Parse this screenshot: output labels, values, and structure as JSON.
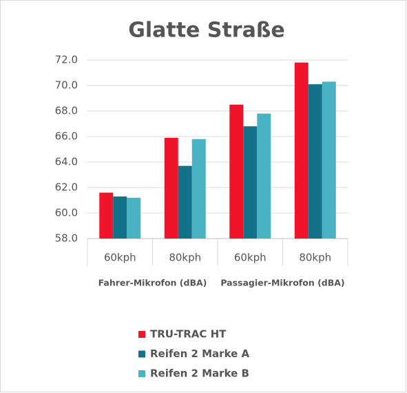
{
  "chart_data": {
    "type": "bar",
    "title": "Glatte Straße",
    "categories": [
      "60kph",
      "80kph",
      "60kph",
      "80kph"
    ],
    "group_labels": [
      "Fahrer-Mikrofon (dBA)",
      "Passagier-Mikrofon (dBA)"
    ],
    "series": [
      {
        "name": "TRU-TRAC HT",
        "color": "#f0142a",
        "values": [
          61.6,
          65.9,
          68.5,
          71.8
        ]
      },
      {
        "name": "Reifen 2 Marke A",
        "color": "#13728a",
        "values": [
          61.3,
          63.7,
          66.8,
          70.1
        ]
      },
      {
        "name": "Reifen 2 Marke B",
        "color": "#4ab3c3",
        "values": [
          61.2,
          65.8,
          67.8,
          70.3
        ]
      }
    ],
    "ylim": [
      58,
      72
    ],
    "yticks": [
      {
        "value": 58,
        "label": "58.0"
      },
      {
        "value": 60,
        "label": "60.0"
      },
      {
        "value": 62,
        "label": "62.0"
      },
      {
        "value": 64,
        "label": "64.0"
      },
      {
        "value": 66,
        "label": "66.0"
      },
      {
        "value": 68,
        "label": "68.0"
      },
      {
        "value": 70,
        "label": "70.0"
      },
      {
        "value": 72,
        "label": "72.0"
      }
    ],
    "grid": true,
    "legend": "bottom"
  }
}
